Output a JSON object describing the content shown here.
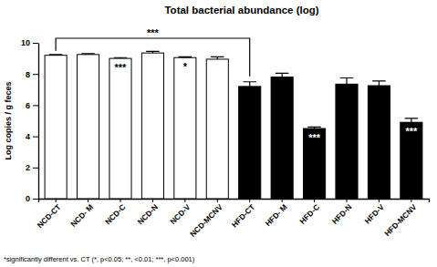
{
  "chart_data": {
    "type": "bar",
    "title": "Total bacterial abundance (log)",
    "y_label": "Log copies / g feces",
    "categories": [
      "NCD-CT",
      "NCD- M",
      "NCD-C",
      "NCD-N",
      "NCD-V",
      "NCD-MCNV",
      "HFD-CT",
      "HFD- M",
      "HFD-C",
      "HFD-N",
      "HFD-V",
      "HFD-MCNV"
    ],
    "values": [
      9.2,
      9.25,
      9.0,
      9.35,
      9.05,
      8.95,
      7.2,
      7.8,
      4.5,
      7.35,
      7.25,
      4.9
    ],
    "errors": [
      0.05,
      0.05,
      0.05,
      0.1,
      0.05,
      0.15,
      0.3,
      0.25,
      0.1,
      0.4,
      0.3,
      0.25
    ],
    "colors": [
      "#ffffff",
      "#ffffff",
      "#ffffff",
      "#ffffff",
      "#ffffff",
      "#ffffff",
      "#000000",
      "#000000",
      "#000000",
      "#000000",
      "#000000",
      "#000000"
    ],
    "ylim": [
      0,
      10
    ],
    "yticks": [
      0,
      2,
      4,
      6,
      8,
      10
    ],
    "grid": false,
    "annotations": [
      {
        "text": "***",
        "category": "NCD-C"
      },
      {
        "text": "*",
        "category": "NCD-V"
      },
      {
        "text": "***",
        "category": "HFD-C"
      },
      {
        "text": "***",
        "category": "HFD-MCNV"
      },
      {
        "text": "***",
        "from": "NCD-CT",
        "to": "HFD-CT"
      }
    ],
    "footnote": "*significantly different vs. CT (*, p<0.05; **, <0.01; ***, p<0.001)"
  }
}
